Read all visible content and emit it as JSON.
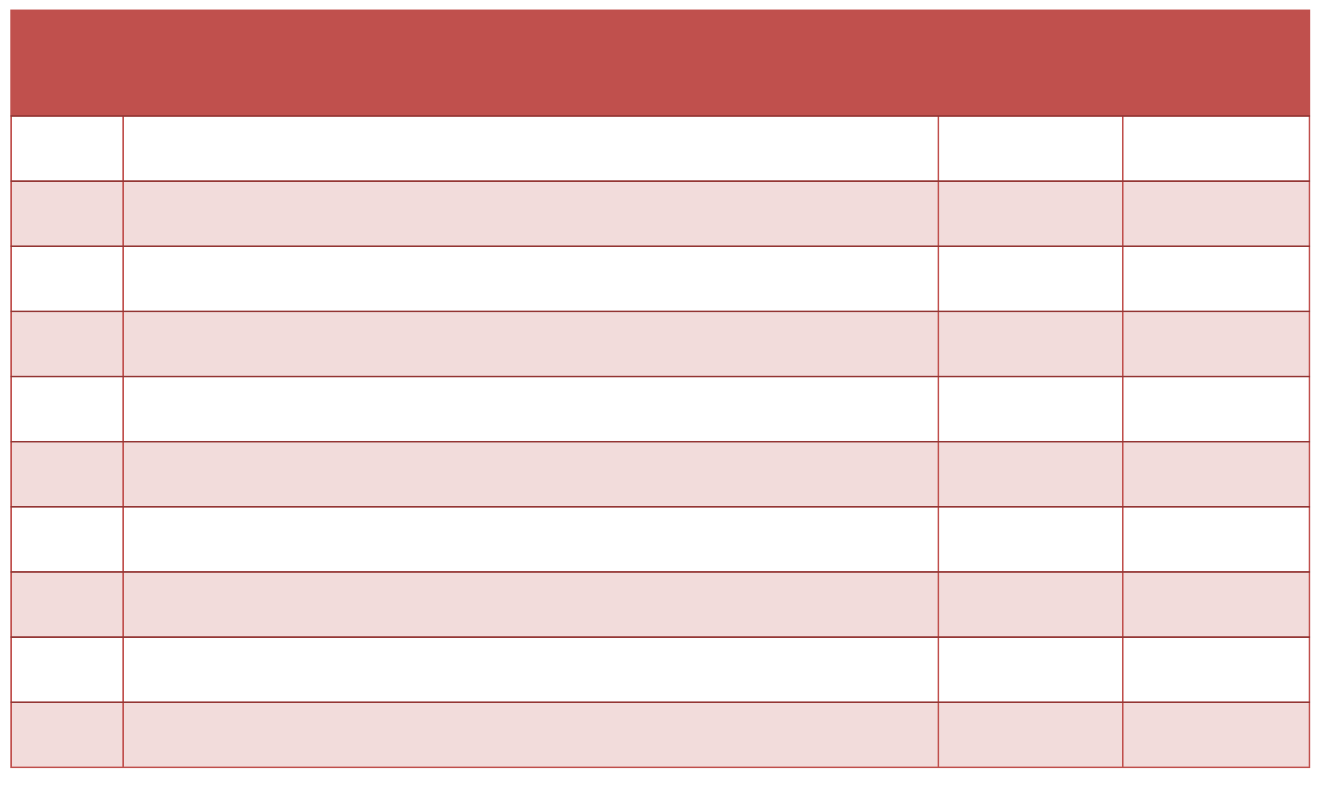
{
  "table": {
    "header": [
      "",
      "",
      "",
      ""
    ],
    "rows": [
      [
        "",
        "",
        "",
        ""
      ],
      [
        "",
        "",
        "",
        ""
      ],
      [
        "",
        "",
        "",
        ""
      ],
      [
        "",
        "",
        "",
        ""
      ],
      [
        "",
        "",
        "",
        ""
      ],
      [
        "",
        "",
        "",
        ""
      ],
      [
        "",
        "",
        "",
        ""
      ],
      [
        "",
        "",
        "",
        ""
      ],
      [
        "",
        "",
        "",
        ""
      ],
      [
        "",
        "",
        "",
        ""
      ]
    ]
  },
  "colors": {
    "header_fill": "#c0504d",
    "border": "#c0504d",
    "row_divider": "#943634",
    "stripe_fill": "#f2dcdb",
    "plain_fill": "#ffffff"
  }
}
